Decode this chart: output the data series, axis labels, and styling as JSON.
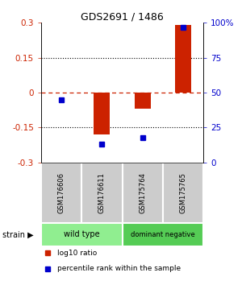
{
  "title": "GDS2691 / 1486",
  "samples": [
    "GSM176606",
    "GSM176611",
    "GSM175764",
    "GSM175765"
  ],
  "log10_ratio": [
    0.0,
    -0.18,
    -0.07,
    0.29
  ],
  "percentile_rank": [
    45,
    13,
    18,
    97
  ],
  "groups": [
    {
      "label": "wild type",
      "color": "#90ee90",
      "samples": [
        0,
        1
      ]
    },
    {
      "label": "dominant negative",
      "color": "#55cc55",
      "samples": [
        2,
        3
      ]
    }
  ],
  "ylim": [
    -0.3,
    0.3
  ],
  "yticks_left": [
    -0.3,
    -0.15,
    0,
    0.15,
    0.3
  ],
  "yticks_right_vals": [
    0,
    25,
    50,
    75,
    100
  ],
  "yticks_right_labels": [
    "0",
    "25",
    "50",
    "75",
    "100%"
  ],
  "bar_color": "#cc2200",
  "dot_color": "#0000cc",
  "zero_line_color": "#cc2200",
  "hline_color": "#000000",
  "box_color": "#cccccc",
  "legend_red_label": "log10 ratio",
  "legend_blue_label": "percentile rank within the sample",
  "strain_label": "strain",
  "strain_arrow": "▶",
  "bar_width": 0.4
}
